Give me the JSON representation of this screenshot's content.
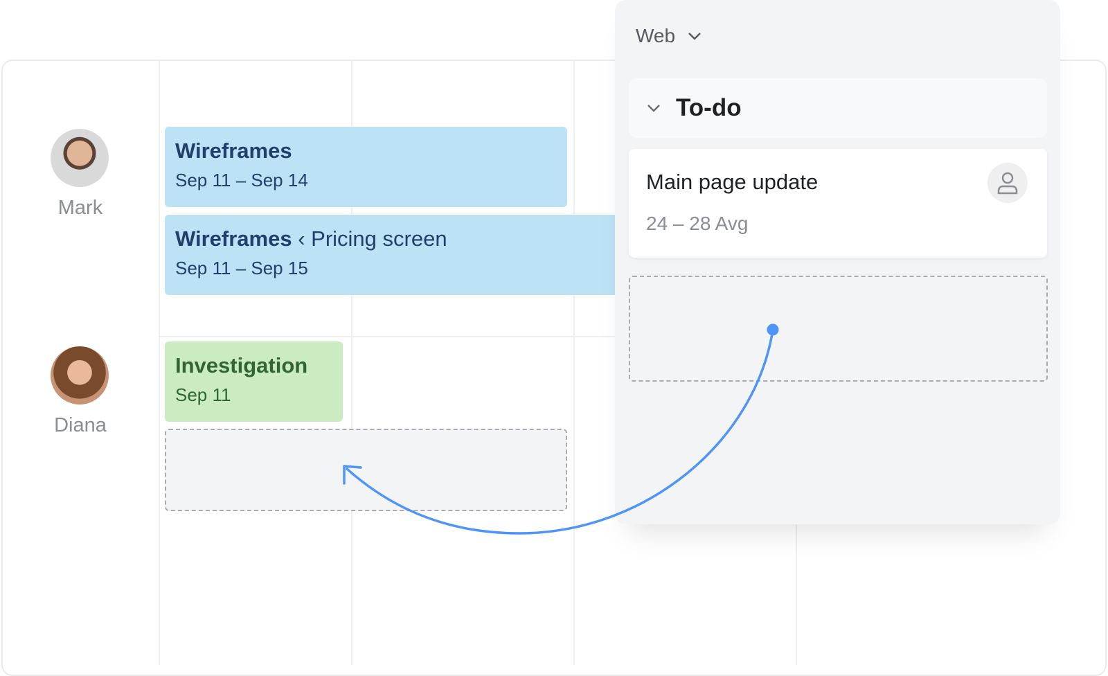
{
  "people": [
    {
      "name": "Mark"
    },
    {
      "name": "Diana"
    }
  ],
  "tasks": [
    {
      "title": "Wireframes",
      "dates": "Sep 11 – Sep 14"
    },
    {
      "title": "Wireframes",
      "separator": "‹",
      "subtitle": "Pricing screen",
      "dates": "Sep 11 – Sep 15"
    },
    {
      "title": "Investigation",
      "dates": "Sep 11"
    }
  ],
  "panel": {
    "project": "Web",
    "group": "To-do",
    "card": {
      "title": "Main page update",
      "dates": "24 – 28 Avg",
      "assignee_icon": "user-icon"
    }
  },
  "colors": {
    "task_blue": "#bee2f5",
    "task_green": "#cbecc0",
    "accent": "#4f94f7"
  }
}
